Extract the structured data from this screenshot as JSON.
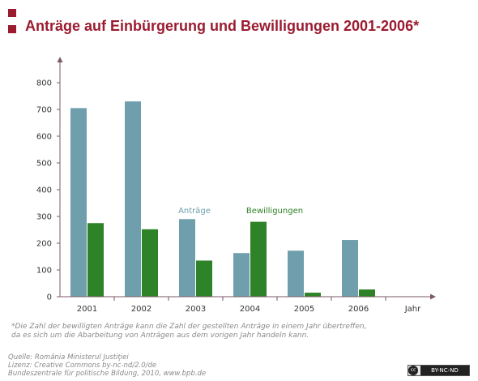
{
  "header": {
    "title": "Anträge auf Einbürgerung und Bewilligungen 2001-2006*"
  },
  "colors": {
    "accent": "#9b1b30",
    "antraege": "#6f9fad",
    "bewilligungen": "#2e8227",
    "axis": "#7a5a66"
  },
  "chart_data": {
    "type": "bar",
    "categories": [
      "2001",
      "2002",
      "2003",
      "2004",
      "2005",
      "2006"
    ],
    "xlabel": "Jahr",
    "ylabel": "",
    "ylim": [
      0,
      800
    ],
    "yticks": [
      0,
      100,
      200,
      300,
      400,
      500,
      600,
      700,
      800
    ],
    "grid": false,
    "series": [
      {
        "name": "Anträge",
        "color": "#6f9fad",
        "values": [
          705,
          730,
          290,
          163,
          172,
          212
        ]
      },
      {
        "name": "Bewilligungen",
        "color": "#2e8227",
        "values": [
          275,
          252,
          135,
          280,
          15,
          27
        ]
      }
    ]
  },
  "footnote": {
    "line1": "*Die Zahl der bewilligten Anträge kann die Zahl der gestellten Anträge in einem Jahr übertreffen,",
    "line2": "da es sich um die Abarbeitung von Anträgen aus dem vorigen Jahr handeln kann."
  },
  "source": {
    "line1": "Quelle: România Ministerul Justiţiei",
    "line2": "Lizenz: Creative Commons by-nc-nd/2.0/de",
    "line3": "Bundeszentrale für politische Bildung, 2010, www.bpb.de"
  },
  "license_badge": {
    "icon_text": "cc",
    "text": "BY-NC-ND"
  }
}
